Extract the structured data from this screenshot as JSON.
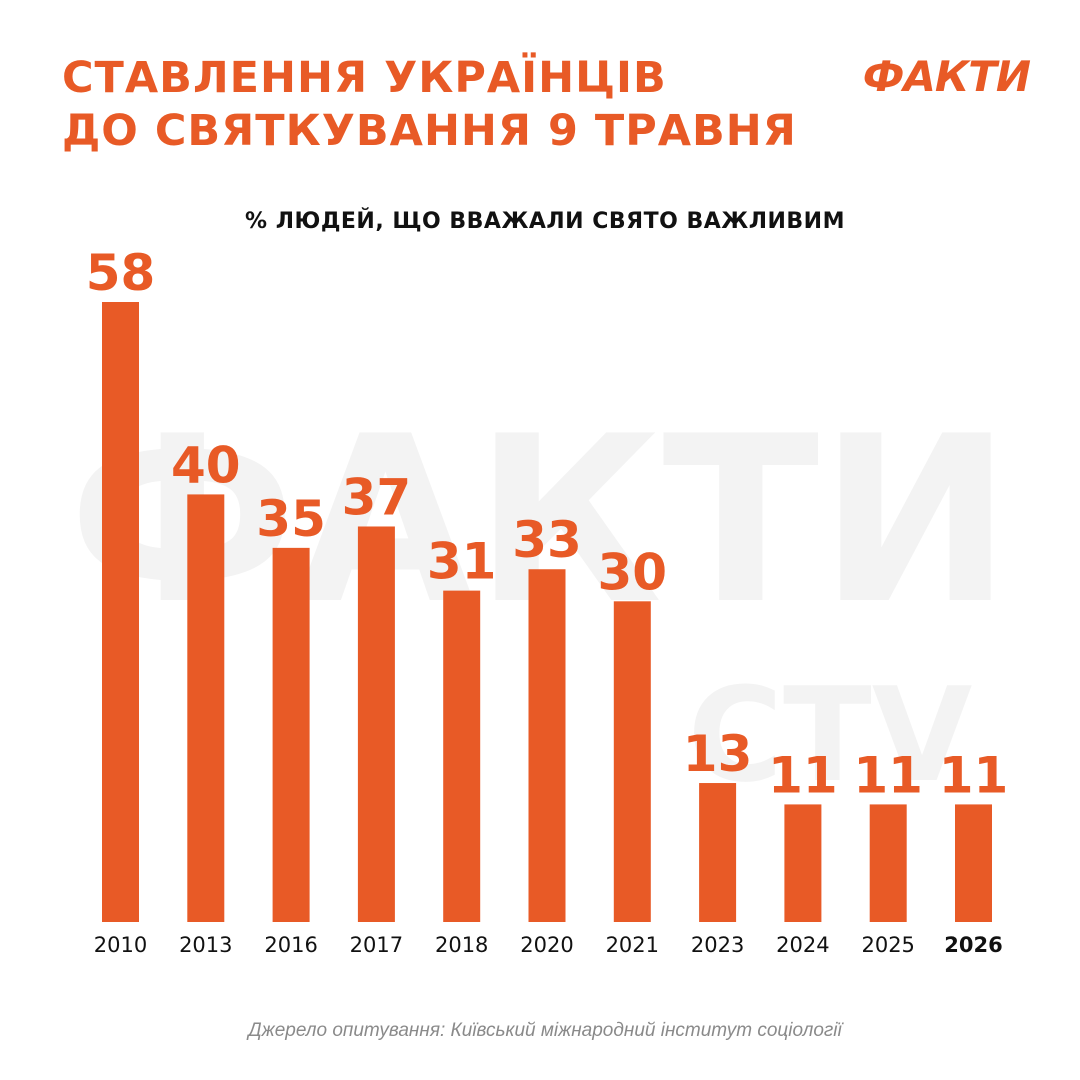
{
  "header": {
    "title_line1": "СТАВЛЕННЯ УКРАЇНЦІВ",
    "title_line2": "ДО СВЯТКУВАННЯ 9 ТРАВНЯ",
    "logo": "ФАКТИ"
  },
  "footer": {
    "source": "Джерело опитування: Київський міжнародний інститут соціології"
  },
  "colors": {
    "accent": "#e85a26",
    "text": "#111111"
  },
  "chart_data": {
    "type": "bar",
    "title": "% ЛЮДЕЙ, ЩО ВВАЖАЛИ СВЯТО ВАЖЛИВИМ",
    "categories": [
      "2010",
      "2013",
      "2016",
      "2017",
      "2018",
      "2020",
      "2021",
      "2023",
      "2024",
      "2025",
      "2026"
    ],
    "values": [
      58,
      40,
      35,
      37,
      31,
      33,
      30,
      13,
      11,
      11,
      11
    ],
    "highlighted_category": "2026",
    "ylim": [
      0,
      58
    ],
    "grid": false,
    "legend": "none"
  }
}
